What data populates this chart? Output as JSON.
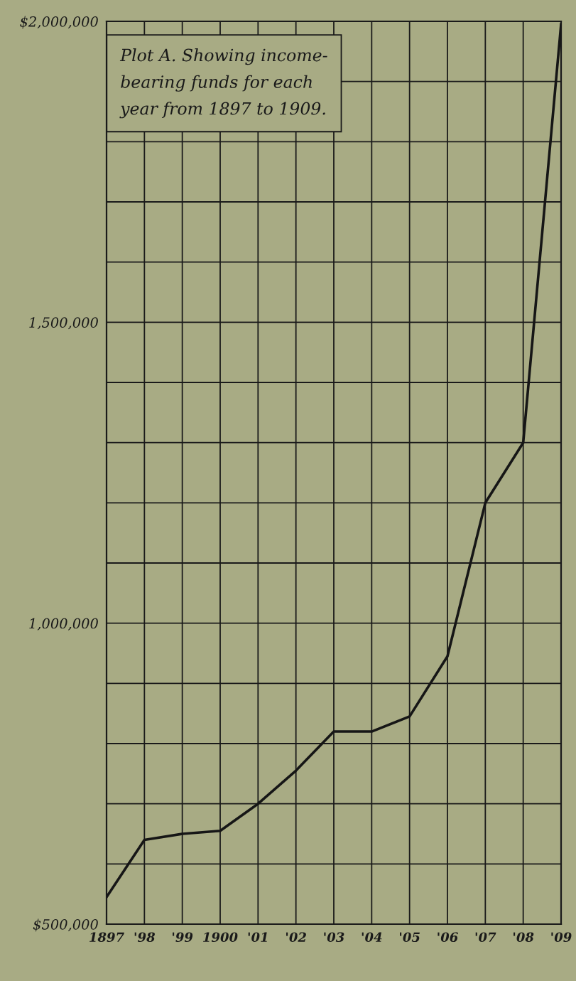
{
  "chart_data": {
    "type": "line",
    "title": "Plot A. Showing income-\nbearing funds for each\nyear from 1897 to 1909.",
    "x": [
      1897,
      1898,
      1899,
      1900,
      1901,
      1902,
      1903,
      1904,
      1905,
      1906,
      1907,
      1908,
      1909
    ],
    "series": [
      {
        "color": "#161616",
        "values": [
          545000,
          640000,
          650000,
          655000,
          700000,
          755000,
          820000,
          820000,
          845000,
          945000,
          1200000,
          1300000,
          1995000
        ]
      }
    ],
    "xlim": [
      1897,
      1909
    ],
    "xticks": [
      {
        "value": 1897,
        "label": "1897"
      },
      {
        "value": 1898,
        "label": "'98"
      },
      {
        "value": 1899,
        "label": "'99"
      },
      {
        "value": 1900,
        "label": "1900"
      },
      {
        "value": 1901,
        "label": "'01"
      },
      {
        "value": 1902,
        "label": "'02"
      },
      {
        "value": 1903,
        "label": "'03"
      },
      {
        "value": 1904,
        "label": "'04"
      },
      {
        "value": 1905,
        "label": "'05"
      },
      {
        "value": 1906,
        "label": "'06"
      },
      {
        "value": 1907,
        "label": "'07"
      },
      {
        "value": 1908,
        "label": "'08"
      },
      {
        "value": 1909,
        "label": "'09"
      }
    ],
    "ylim": [
      500000,
      2000000
    ],
    "yticks": [
      {
        "value": 500000,
        "label": "$500,000"
      },
      {
        "value": 600000,
        "label": null
      },
      {
        "value": 700000,
        "label": null
      },
      {
        "value": 800000,
        "label": null
      },
      {
        "value": 900000,
        "label": null
      },
      {
        "value": 1000000,
        "label": "1,000,000"
      },
      {
        "value": 1100000,
        "label": null
      },
      {
        "value": 1200000,
        "label": null
      },
      {
        "value": 1300000,
        "label": null
      },
      {
        "value": 1400000,
        "label": null
      },
      {
        "value": 1500000,
        "label": "1,500,000"
      },
      {
        "value": 1600000,
        "label": null
      },
      {
        "value": 1700000,
        "label": null
      },
      {
        "value": 1800000,
        "label": null
      },
      {
        "value": 1900000,
        "label": null
      },
      {
        "value": 2000000,
        "label": "$2,000,000"
      }
    ],
    "grid": true,
    "marker": "none",
    "line_style": "solid",
    "legend": false
  }
}
